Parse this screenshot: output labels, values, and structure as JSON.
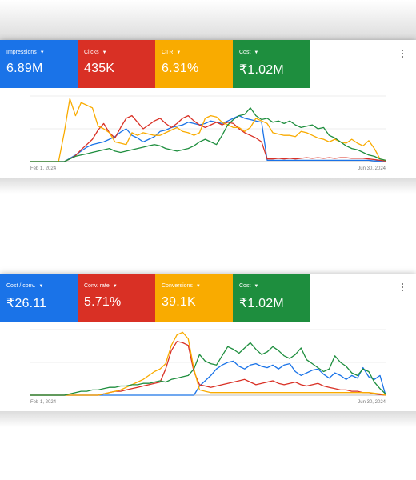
{
  "cards": [
    {
      "metrics": [
        {
          "label": "Impressions",
          "value": "6.89M",
          "color": "#1a73e8"
        },
        {
          "label": "Clicks",
          "value": "435K",
          "color": "#d93025"
        },
        {
          "label": "CTR",
          "value": "6.31%",
          "color": "#f9ab00"
        },
        {
          "label": "Cost",
          "value": "₹1.02M",
          "color": "#1e8e3e"
        }
      ],
      "x_start_label": "Feb 1, 2024",
      "x_end_label": "Jun 30, 2024"
    },
    {
      "metrics": [
        {
          "label": "Cost / conv.",
          "value": "₹26.11",
          "color": "#1a73e8"
        },
        {
          "label": "Conv. rate",
          "value": "5.71%",
          "color": "#d93025"
        },
        {
          "label": "Conversions",
          "value": "39.1K",
          "color": "#f9ab00"
        },
        {
          "label": "Cost",
          "value": "₹1.02M",
          "color": "#1e8e3e"
        }
      ],
      "x_start_label": "Feb 1, 2024",
      "x_end_label": "Jun 30, 2024"
    }
  ],
  "chart_data": [
    {
      "type": "line",
      "x_range": [
        "Feb 1, 2024",
        "Jun 30, 2024"
      ],
      "grid": true,
      "series": [
        {
          "name": "Impressions",
          "color": "#1a73e8",
          "values": [
            0,
            0,
            0,
            0,
            0,
            0,
            0,
            5,
            10,
            16,
            22,
            26,
            28,
            30,
            34,
            38,
            45,
            50,
            40,
            36,
            30,
            34,
            38,
            46,
            48,
            52,
            54,
            56,
            60,
            58,
            56,
            58,
            62,
            60,
            58,
            62,
            66,
            70,
            66,
            64,
            62,
            60,
            2,
            2,
            2,
            2,
            2,
            2,
            2,
            2,
            2,
            2,
            2,
            2,
            2,
            2,
            2,
            2,
            2,
            2,
            2,
            1,
            1,
            1
          ]
        },
        {
          "name": "Clicks",
          "color": "#d93025",
          "values": [
            0,
            0,
            0,
            0,
            0,
            0,
            0,
            4,
            9,
            18,
            26,
            34,
            48,
            58,
            44,
            36,
            52,
            66,
            70,
            60,
            50,
            56,
            62,
            66,
            58,
            52,
            58,
            66,
            70,
            62,
            56,
            52,
            56,
            60,
            56,
            60,
            58,
            50,
            44,
            40,
            36,
            30,
            4,
            4,
            5,
            4,
            5,
            4,
            5,
            6,
            5,
            6,
            5,
            6,
            5,
            6,
            6,
            5,
            5,
            5,
            4,
            3,
            2,
            1
          ]
        },
        {
          "name": "CTR",
          "color": "#f9ab00",
          "values": [
            0,
            0,
            0,
            0,
            0,
            0,
            44,
            96,
            70,
            90,
            86,
            82,
            54,
            50,
            44,
            30,
            28,
            26,
            44,
            40,
            44,
            42,
            40,
            40,
            44,
            48,
            52,
            46,
            44,
            40,
            44,
            66,
            70,
            68,
            60,
            56,
            52,
            52,
            46,
            52,
            66,
            62,
            58,
            44,
            42,
            40,
            40,
            38,
            46,
            44,
            40,
            36,
            34,
            30,
            34,
            30,
            28,
            34,
            28,
            24,
            32,
            20,
            4,
            2
          ]
        },
        {
          "name": "Cost",
          "color": "#1e8e3e",
          "values": [
            0,
            0,
            0,
            0,
            0,
            0,
            0,
            4,
            8,
            10,
            12,
            14,
            16,
            18,
            20,
            16,
            14,
            16,
            18,
            20,
            22,
            24,
            26,
            24,
            20,
            18,
            16,
            18,
            20,
            24,
            30,
            34,
            30,
            26,
            40,
            56,
            64,
            70,
            72,
            82,
            70,
            64,
            66,
            60,
            62,
            58,
            62,
            56,
            52,
            54,
            56,
            50,
            52,
            40,
            36,
            30,
            24,
            20,
            18,
            14,
            10,
            8,
            4,
            2
          ]
        }
      ]
    },
    {
      "type": "line",
      "x_range": [
        "Feb 1, 2024",
        "Jun 30, 2024"
      ],
      "grid": true,
      "series": [
        {
          "name": "Cost / conv.",
          "color": "#1a73e8",
          "values": [
            0,
            0,
            0,
            0,
            0,
            0,
            0,
            0,
            0,
            0,
            0,
            0,
            0,
            0,
            0,
            0,
            0,
            0,
            0,
            0,
            0,
            0,
            0,
            0,
            0,
            0,
            0,
            0,
            0,
            0,
            14,
            22,
            30,
            40,
            46,
            50,
            52,
            44,
            40,
            46,
            48,
            44,
            42,
            46,
            40,
            46,
            48,
            36,
            30,
            34,
            38,
            40,
            32,
            26,
            34,
            30,
            24,
            30,
            26,
            42,
            28,
            24,
            30,
            0
          ]
        },
        {
          "name": "Conv. rate",
          "color": "#d93025",
          "values": [
            0,
            0,
            0,
            0,
            0,
            0,
            0,
            0,
            0,
            0,
            0,
            0,
            0,
            2,
            4,
            6,
            6,
            8,
            10,
            12,
            14,
            16,
            18,
            20,
            40,
            68,
            82,
            80,
            76,
            36,
            16,
            14,
            12,
            14,
            16,
            18,
            20,
            22,
            24,
            20,
            16,
            18,
            20,
            22,
            18,
            16,
            18,
            20,
            16,
            14,
            16,
            18,
            14,
            12,
            10,
            8,
            8,
            6,
            6,
            4,
            4,
            2,
            1,
            0
          ]
        },
        {
          "name": "Conversions",
          "color": "#f9ab00",
          "values": [
            0,
            0,
            0,
            0,
            0,
            0,
            0,
            0,
            0,
            0,
            0,
            0,
            0,
            2,
            4,
            6,
            8,
            12,
            16,
            20,
            24,
            30,
            36,
            40,
            48,
            76,
            92,
            96,
            86,
            40,
            8,
            6,
            4,
            4,
            4,
            4,
            4,
            4,
            4,
            4,
            4,
            4,
            4,
            4,
            4,
            4,
            4,
            4,
            4,
            4,
            4,
            4,
            4,
            4,
            4,
            4,
            4,
            4,
            4,
            4,
            4,
            3,
            2,
            0
          ]
        },
        {
          "name": "Cost",
          "color": "#1e8e3e",
          "values": [
            0,
            0,
            0,
            0,
            0,
            0,
            0,
            2,
            4,
            6,
            6,
            8,
            8,
            10,
            12,
            12,
            14,
            14,
            16,
            16,
            18,
            18,
            20,
            22,
            20,
            24,
            26,
            28,
            30,
            40,
            62,
            52,
            48,
            46,
            60,
            74,
            70,
            64,
            72,
            80,
            70,
            62,
            66,
            74,
            68,
            60,
            56,
            62,
            72,
            54,
            48,
            42,
            36,
            40,
            60,
            50,
            44,
            34,
            30,
            40,
            36,
            20,
            10,
            2
          ]
        }
      ]
    }
  ]
}
